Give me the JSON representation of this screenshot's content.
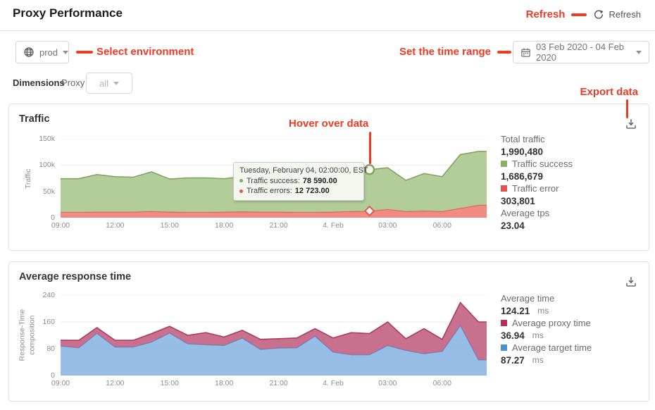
{
  "header": {
    "title": "Proxy Performance",
    "refresh_label": "Refresh"
  },
  "annotations": {
    "refresh": "Refresh",
    "select_environment": "Select environment",
    "set_time_range": "Set the time range",
    "export_data": "Export data",
    "hover_over_data": "Hover over data",
    "color": "#ef3b24"
  },
  "filters": {
    "environment": "prod",
    "date_range": "03 Feb 2020 - 04 Feb 2020",
    "dimensions_label": "Dimensions",
    "dimension_name": "Proxy",
    "dimension_value": "all"
  },
  "traffic_card": {
    "title": "Traffic",
    "legend": [
      {
        "label": "Total traffic",
        "value": "1,990,480"
      },
      {
        "label": "Traffic success",
        "value": "1,686,679",
        "color": "#8cb164"
      },
      {
        "label": "Traffic error",
        "value": "303,801",
        "color": "#e0524d"
      },
      {
        "label": "Average tps",
        "value": "23.04"
      }
    ],
    "tooltip": {
      "title": "Tuesday, February 04, 02:00:00, EST",
      "rows": [
        {
          "label": "Traffic success:",
          "value": "78 590.00",
          "color": "#7cb05e"
        },
        {
          "label": "Traffic errors:",
          "value": "12 723.00",
          "color": "#e2574e"
        }
      ]
    }
  },
  "response_card": {
    "title": "Average response time",
    "legend": [
      {
        "label": "Average time",
        "value": "124.21",
        "unit": "ms"
      },
      {
        "label": "Average proxy time",
        "value": "36.94",
        "unit": "ms",
        "color": "#bc2a5e"
      },
      {
        "label": "Average target time",
        "value": "87.27",
        "unit": "ms",
        "color": "#4a90d2"
      }
    ]
  },
  "chart_data": [
    {
      "type": "area",
      "stacked": true,
      "title": "Traffic",
      "grid": true,
      "legend_position": "right",
      "x": [
        "09:00",
        "10:00",
        "11:00",
        "12:00",
        "13:00",
        "14:00",
        "15:00",
        "16:00",
        "17:00",
        "18:00",
        "19:00",
        "20:00",
        "21:00",
        "22:00",
        "23:00",
        "00:00",
        "01:00",
        "02:00",
        "03:00",
        "04:00",
        "05:00",
        "06:00",
        "07:00",
        "08:00"
      ],
      "x_tick_labels": [
        "09:00",
        "12:00",
        "15:00",
        "18:00",
        "21:00",
        "4. Feb",
        "03:00",
        "06:00"
      ],
      "x_tick_indices": [
        0,
        3,
        6,
        9,
        12,
        15,
        18,
        21
      ],
      "ylabel": "Traffic",
      "ylim": [
        0,
        150000
      ],
      "yticks": [
        {
          "v": 0,
          "label": "0"
        },
        {
          "v": 50000,
          "label": "50k"
        },
        {
          "v": 100000,
          "label": "100k"
        },
        {
          "v": 150000,
          "label": "150k"
        }
      ],
      "series": [
        {
          "name": "traffic-errors",
          "fill": "#ef7a72",
          "stroke": "#e2574e",
          "values": [
            10500,
            10500,
            11000,
            11000,
            11000,
            12000,
            11000,
            10500,
            10500,
            11000,
            11500,
            11000,
            11000,
            10500,
            10500,
            11000,
            12000,
            12723,
            16000,
            12000,
            13000,
            12000,
            18000,
            24000
          ]
        },
        {
          "name": "traffic-success",
          "fill": "#a9c68c",
          "stroke": "#83a45f",
          "values": [
            63500,
            63500,
            71000,
            67000,
            66000,
            75000,
            62500,
            65000,
            65000,
            63000,
            66500,
            70000,
            67000,
            66500,
            67500,
            74000,
            72000,
            78590,
            79000,
            59000,
            71000,
            66000,
            102000,
            102000
          ]
        }
      ],
      "hover_index": 17
    },
    {
      "type": "area",
      "stacked": true,
      "title": "Average response time",
      "grid": true,
      "legend_position": "right",
      "x": [
        "09:00",
        "10:00",
        "11:00",
        "12:00",
        "13:00",
        "14:00",
        "15:00",
        "16:00",
        "17:00",
        "18:00",
        "19:00",
        "20:00",
        "21:00",
        "22:00",
        "23:00",
        "00:00",
        "01:00",
        "02:00",
        "03:00",
        "04:00",
        "05:00",
        "06:00",
        "07:00",
        "08:00"
      ],
      "x_tick_labels": [
        "09:00",
        "12:00",
        "15:00",
        "18:00",
        "21:00",
        "4. Feb",
        "03:00",
        "06:00"
      ],
      "x_tick_indices": [
        0,
        3,
        6,
        9,
        12,
        15,
        18,
        21
      ],
      "ylabel": "Response-Time\ncomposition",
      "ylim": [
        0,
        240
      ],
      "yticks": [
        {
          "v": 0,
          "label": "0"
        },
        {
          "v": 80,
          "label": "80"
        },
        {
          "v": 160,
          "label": "160"
        },
        {
          "v": 240,
          "label": "240"
        }
      ],
      "series": [
        {
          "name": "average-target-time",
          "fill": "#88b4e2",
          "stroke": "#5e93c8",
          "values": [
            88,
            83,
            126,
            85,
            85,
            100,
            127,
            95,
            92,
            90,
            112,
            78,
            82,
            83,
            118,
            70,
            62,
            62,
            90,
            75,
            65,
            72,
            150,
            47
          ]
        },
        {
          "name": "average-proxy-time",
          "fill": "#c25c80",
          "stroke": "#ad3a62",
          "values": [
            17,
            22,
            17,
            20,
            20,
            25,
            20,
            25,
            36,
            25,
            23,
            30,
            28,
            29,
            22,
            42,
            66,
            63,
            70,
            35,
            75,
            36,
            68,
            113
          ]
        }
      ],
      "hover_index": null
    }
  ]
}
